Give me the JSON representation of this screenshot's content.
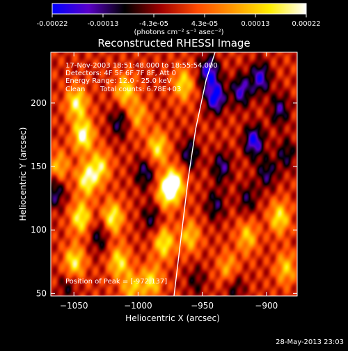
{
  "colorbar": {
    "ticks": [
      "-0.00022",
      "-0.00013",
      "-4.3e-05",
      "4.3e-05",
      "0.00013",
      "0.00022"
    ],
    "unit_label": "(photons cm⁻² s⁻¹ asec⁻²)",
    "min": -0.00022,
    "max": 0.00022,
    "colormap": [
      "#0000ff",
      "#5a00c8",
      "#000000",
      "#a00000",
      "#ff4a00",
      "#ff9a00",
      "#ffee00",
      "#ffffff"
    ]
  },
  "annotations": {
    "line1": "17-Nov-2003 18:51:48.000 to 18:55:54.000",
    "line2": "Detectors: 4F 5F 6F 7F 8F, Att 0",
    "line3": "Energy Range: 12.0 - 25.0 keV",
    "line4_left": "Clean",
    "line4_right": "Total counts: 6.78E+03",
    "peak": "Position of Peak = [-972,137]"
  },
  "footer": {
    "timestamp": "28-May-2013 23:03"
  },
  "chart_data": {
    "type": "heatmap",
    "title": "Reconstructed RHESSI Image",
    "xlabel": "Heliocentric X (arcsec)",
    "ylabel": "Heliocentric Y (arcsec)",
    "xlim": [
      -1068,
      -876
    ],
    "ylim": [
      48,
      240
    ],
    "xticks": [
      -1050,
      -1000,
      -950,
      -900
    ],
    "yticks": [
      50,
      100,
      150,
      200
    ],
    "xtick_labels": [
      "−1050",
      "−1000",
      "−950",
      "−900"
    ],
    "ytick_labels": [
      "50",
      "100",
      "150",
      "200"
    ],
    "peak_position": [
      -972,
      137
    ],
    "limb_curve": [
      [
        -972,
        48
      ],
      [
        -967,
        90
      ],
      [
        -961,
        140
      ],
      [
        -955,
        180
      ],
      [
        -947,
        218
      ],
      [
        -940,
        240
      ]
    ],
    "blobs": [
      {
        "x": -1043,
        "y": 175,
        "v": 1.0
      },
      {
        "x": -1040,
        "y": 140,
        "v": 0.9
      },
      {
        "x": -1045,
        "y": 110,
        "v": 0.85
      },
      {
        "x": -1050,
        "y": 75,
        "v": 0.8
      },
      {
        "x": -1048,
        "y": 200,
        "v": 0.85
      },
      {
        "x": -1030,
        "y": 150,
        "v": 0.75
      },
      {
        "x": -1020,
        "y": 110,
        "v": 0.85
      },
      {
        "x": -1015,
        "y": 75,
        "v": 0.75
      },
      {
        "x": -1010,
        "y": 210,
        "v": 0.7
      },
      {
        "x": -985,
        "y": 165,
        "v": 0.75
      },
      {
        "x": -978,
        "y": 130,
        "v": 0.85
      },
      {
        "x": -972,
        "y": 137,
        "v": 1.0
      },
      {
        "x": -980,
        "y": 90,
        "v": 0.8
      },
      {
        "x": -990,
        "y": 60,
        "v": 0.7
      },
      {
        "x": -960,
        "y": 95,
        "v": 0.6
      },
      {
        "x": -965,
        "y": 215,
        "v": 0.7
      },
      {
        "x": -930,
        "y": 70,
        "v": 0.5
      },
      {
        "x": -890,
        "y": 110,
        "v": 0.75
      },
      {
        "x": -885,
        "y": 70,
        "v": 0.6
      },
      {
        "x": -915,
        "y": 95,
        "v": 0.6
      },
      {
        "x": -1062,
        "y": 150,
        "v": 0.55
      },
      {
        "x": -1000,
        "y": 190,
        "v": 0.5
      },
      {
        "x": -1005,
        "y": 55,
        "v": 0.6
      },
      {
        "x": -1065,
        "y": 130,
        "v": -0.6
      },
      {
        "x": -1030,
        "y": 95,
        "v": -0.45
      },
      {
        "x": -1015,
        "y": 185,
        "v": -0.5
      },
      {
        "x": -995,
        "y": 145,
        "v": -0.55
      },
      {
        "x": -990,
        "y": 110,
        "v": -0.45
      },
      {
        "x": -960,
        "y": 160,
        "v": -0.55
      },
      {
        "x": -945,
        "y": 225,
        "v": -0.85
      },
      {
        "x": -940,
        "y": 205,
        "v": -1.0
      },
      {
        "x": -920,
        "y": 210,
        "v": -0.75
      },
      {
        "x": -905,
        "y": 220,
        "v": -0.8
      },
      {
        "x": -890,
        "y": 195,
        "v": -0.6
      },
      {
        "x": -910,
        "y": 170,
        "v": -0.9
      },
      {
        "x": -935,
        "y": 150,
        "v": -0.6
      },
      {
        "x": -900,
        "y": 145,
        "v": -0.55
      },
      {
        "x": -940,
        "y": 120,
        "v": -0.5
      },
      {
        "x": -915,
        "y": 125,
        "v": -0.45
      },
      {
        "x": -885,
        "y": 160,
        "v": -0.5
      },
      {
        "x": -925,
        "y": 55,
        "v": -0.4
      },
      {
        "x": -955,
        "y": 60,
        "v": -0.35
      },
      {
        "x": -1055,
        "y": 55,
        "v": -0.35
      }
    ]
  }
}
